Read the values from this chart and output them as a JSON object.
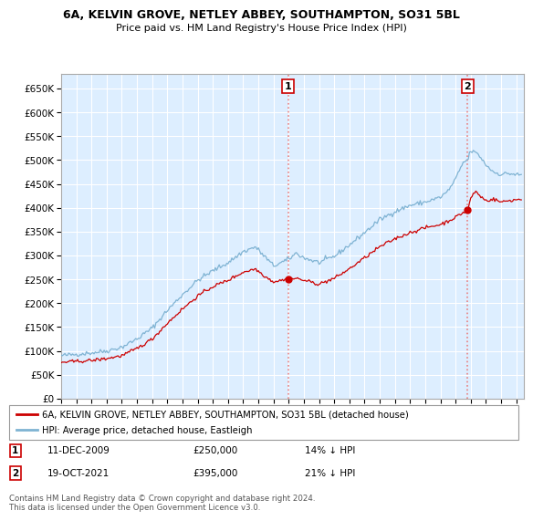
{
  "title": "6A, KELVIN GROVE, NETLEY ABBEY, SOUTHAMPTON, SO31 5BL",
  "subtitle": "Price paid vs. HM Land Registry's House Price Index (HPI)",
  "ylim": [
    0,
    680000
  ],
  "xlim_start": 1995.0,
  "xlim_end": 2025.5,
  "sale1_x": 2009.95,
  "sale1_y": 250000,
  "sale2_x": 2021.8,
  "sale2_y": 395000,
  "line_color_property": "#cc0000",
  "line_color_hpi": "#7fb3d3",
  "vline_color": "#e88080",
  "grid_color": "#cccccc",
  "plot_bg_color": "#ddeeff",
  "legend_label_property": "6A, KELVIN GROVE, NETLEY ABBEY, SOUTHAMPTON, SO31 5BL (detached house)",
  "legend_label_hpi": "HPI: Average price, detached house, Eastleigh",
  "annotation1_date": "11-DEC-2009",
  "annotation1_price": "£250,000",
  "annotation1_hpi": "14% ↓ HPI",
  "annotation2_date": "19-OCT-2021",
  "annotation2_price": "£395,000",
  "annotation2_hpi": "21% ↓ HPI",
  "footer": "Contains HM Land Registry data © Crown copyright and database right 2024.\nThis data is licensed under the Open Government Licence v3.0."
}
